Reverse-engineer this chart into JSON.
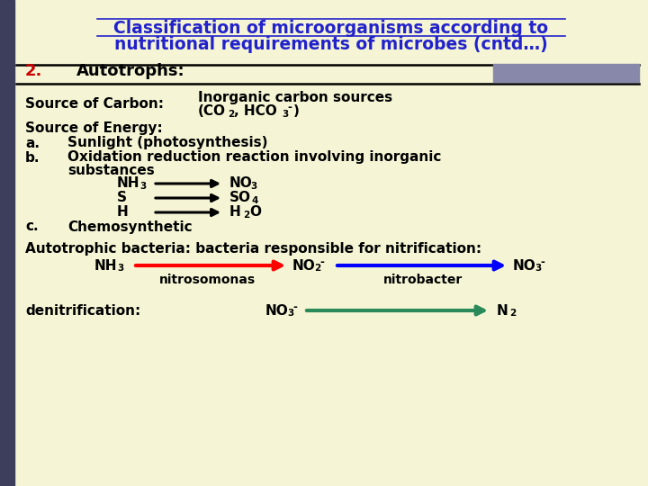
{
  "background_color": "#f5f5d5",
  "left_bar_color": "#3d3d5c",
  "title_line1": "Classification of microorganisms according to",
  "title_line2": "nutritional requirements of microbes (cntd…)",
  "title_color": "#2222cc",
  "title_fontsize": 13.5,
  "section_num": "2.",
  "section_label": "Autotrophs:",
  "section_color": "#cc0000",
  "section_fontsize": 13,
  "body_fontsize": 11,
  "small_fontsize": 7.5,
  "gray_rect_color": "#8888aa"
}
